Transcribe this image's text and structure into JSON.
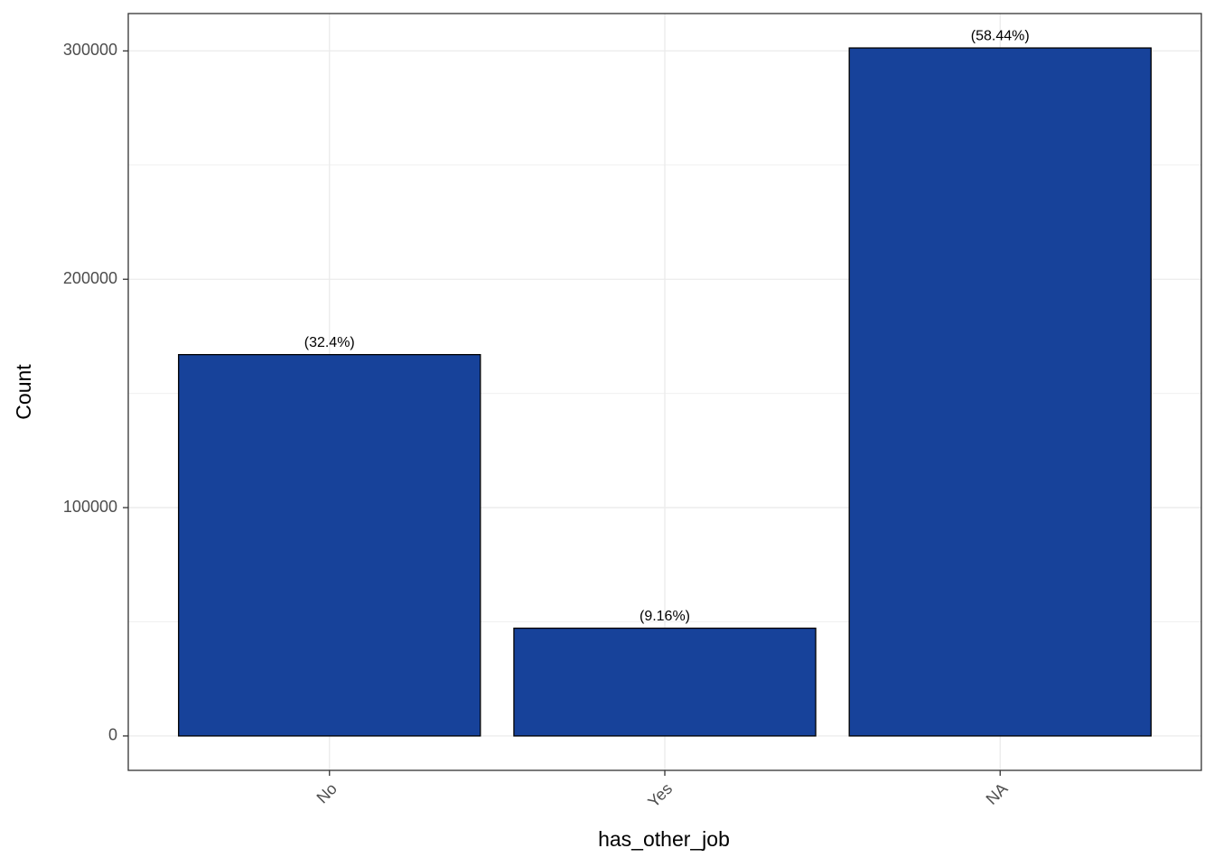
{
  "chart_data": {
    "type": "bar",
    "x_label": "has_other_job",
    "y_label": "Count",
    "categories": [
      "No",
      "Yes",
      "NA"
    ],
    "values": [
      167000,
      47200,
      301300
    ],
    "bar_labels": [
      "(32.4%)",
      "(9.16%)",
      "(58.44%)"
    ],
    "color": "#17429a",
    "ylim": [
      -15065,
      316365
    ],
    "yticks": [
      0,
      100000,
      200000,
      300000
    ],
    "grid": true,
    "minor_grid": true
  }
}
